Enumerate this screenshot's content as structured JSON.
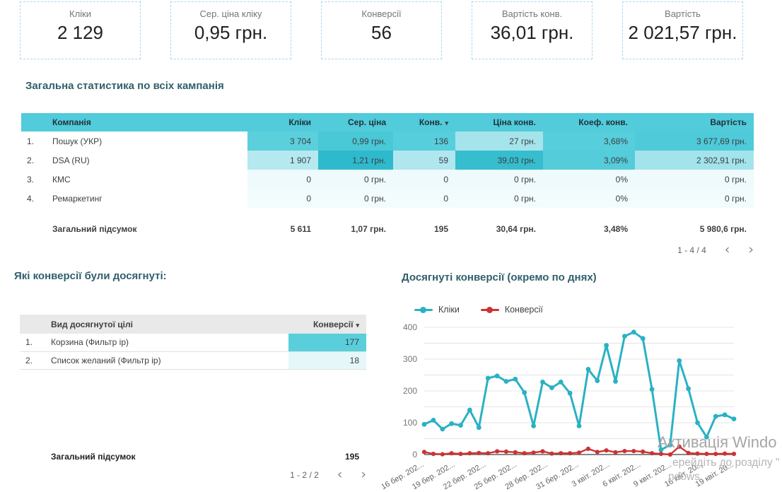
{
  "scorecards": [
    {
      "label": "Кліки",
      "value": "2 129"
    },
    {
      "label": "Сер. ціна кліку",
      "value": "0,95 грн."
    },
    {
      "label": "Конверсії",
      "value": "56"
    },
    {
      "label": "Вартість конв.",
      "value": "36,01 грн."
    },
    {
      "label": "Вартість",
      "value": "2 021,57 грн."
    }
  ],
  "section1": {
    "title": "Загальна статистика по всіх кампанія"
  },
  "campaign_table": {
    "headers": {
      "name": "Компанія",
      "clicks": "Кліки",
      "cpc": "Сер. ціна",
      "conv": "Конв.",
      "sort_arrow": "▾",
      "cpa": "Ціна конв.",
      "cr": "Коеф. конв.",
      "cost": "Вартість"
    },
    "rows": [
      {
        "idx": "1.",
        "name": "Пошук (УКР)",
        "clicks": "3 704",
        "cpc": "0,99 грн.",
        "conv": "136",
        "cpa": "27 грн.",
        "cr": "3,68%",
        "cost": "3 677,69 грн.",
        "bg": {
          "clicks": "#5bd0dc",
          "cpc": "#49c8d6",
          "conv": "#57cedb",
          "cpa": "#a6e4ec",
          "cr": "#57cedb",
          "cost": "#4ecad8"
        }
      },
      {
        "idx": "2.",
        "name": "DSA (RU)",
        "clicks": "1 907",
        "cpc": "1,21 грн.",
        "conv": "59",
        "cpa": "39,03 грн.",
        "cr": "3,09%",
        "cost": "2 302,91 грн.",
        "bg": {
          "clicks": "#b5e9ef",
          "cpc": "#2fb9cc",
          "conv": "#b0e7ee",
          "cpa": "#36bdce",
          "cr": "#55ccd9",
          "cost": "#a3e3eb"
        }
      },
      {
        "idx": "3.",
        "name": "КМС",
        "clicks": "0",
        "cpc": "0 грн.",
        "conv": "0",
        "cpa": "0 грн.",
        "cr": "0%",
        "cost": "0 грн.",
        "bg": {
          "clicks": "#eefafc",
          "cpc": "#eefafc",
          "conv": "#eefafc",
          "cpa": "#eefafc",
          "cr": "#eefafc",
          "cost": "#eefafc"
        }
      },
      {
        "idx": "4.",
        "name": "Ремаркетинг",
        "clicks": "0",
        "cpc": "0 грн.",
        "conv": "0",
        "cpa": "0 грн.",
        "cr": "0%",
        "cost": "0 грн.",
        "bg": {
          "clicks": "#f3fcfd",
          "cpc": "#f3fcfd",
          "conv": "#f3fcfd",
          "cpa": "#f3fcfd",
          "cr": "#f3fcfd",
          "cost": "#f3fcfd"
        }
      }
    ],
    "total": {
      "label": "Загальний підсумок",
      "clicks": "5 611",
      "cpc": "1,07 грн.",
      "conv": "195",
      "cpa": "30,64 грн.",
      "cr": "3,48%",
      "cost": "5 980,6 грн."
    },
    "pagination": {
      "range": "1 - 4 / 4",
      "prev": "‹",
      "next": "›"
    }
  },
  "section2": {
    "title": "Які конверсії були досягнуті:"
  },
  "goals_table": {
    "headers": {
      "name": "Вид досягнутої цілі",
      "conv": "Конверсії",
      "sort_arrow": "▾"
    },
    "rows": [
      {
        "idx": "1.",
        "name": "Корзина (Фильтр ір)",
        "conv": "177",
        "bg": "#59cfdb"
      },
      {
        "idx": "2.",
        "name": "Список желаний (Фильтр ір)",
        "conv": "18",
        "bg": "#e6f7fa"
      }
    ],
    "total": {
      "label": "Загальний підсумок",
      "conv": "195"
    },
    "pagination": {
      "range": "1 - 2 / 2",
      "prev": "‹",
      "next": "›"
    }
  },
  "chart_data": {
    "type": "line",
    "title": "Досягнуті конверсії (окремо по днях)",
    "ylim": [
      0,
      400
    ],
    "yticks": [
      0,
      100,
      200,
      300,
      400
    ],
    "grid_minor_step": 50,
    "legend_position": "top",
    "xticklabels": [
      "16 бер. 202...",
      "19 бер. 202...",
      "22 бер. 202...",
      "25 бер. 202...",
      "28 бер. 202...",
      "31 бер. 202...",
      "3 квіт. 202...",
      "6 квіт. 202...",
      "9 квіт. 202...",
      "16 квіт. 20...",
      "19 квіт. 20..."
    ],
    "series": [
      {
        "name": "Кліки",
        "color": "#2ab1c4",
        "values": [
          95,
          108,
          80,
          97,
          92,
          140,
          85,
          240,
          247,
          230,
          237,
          195,
          90,
          228,
          210,
          228,
          193,
          90,
          268,
          232,
          343,
          230,
          372,
          385,
          365,
          205,
          15,
          30,
          295,
          207,
          100,
          55,
          120,
          125,
          112
        ]
      },
      {
        "name": "Конверсії",
        "color": "#cb3333",
        "values": [
          8,
          2,
          1,
          4,
          2,
          4,
          5,
          4,
          10,
          9,
          7,
          4,
          6,
          10,
          3,
          4,
          4,
          6,
          18,
          8,
          13,
          7,
          11,
          11,
          9,
          4,
          2,
          0,
          25,
          5,
          3,
          2,
          2,
          3,
          2
        ]
      }
    ]
  },
  "watermark": {
    "line1": "Активація Windo",
    "line2": "ерейдіть до розділу \"",
    "line3": "ndows."
  },
  "colors": {
    "table_header_teal": "#52cbdb",
    "chart_teal": "#2ab1c4",
    "chart_red": "#cb3333",
    "section_title": "#315f6d",
    "card_border": "#a9d8ee"
  }
}
